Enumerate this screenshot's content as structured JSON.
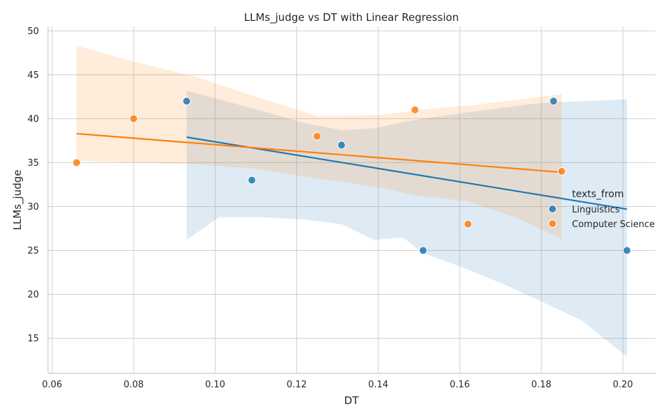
{
  "chart_data": {
    "type": "scatter",
    "title": "LLMs_judge vs DT with Linear Regression",
    "xlabel": "DT",
    "ylabel": "LLMs_judge",
    "xlim": [
      0.059,
      0.208
    ],
    "ylim": [
      11,
      50.5
    ],
    "x_ticks": [
      "0.06",
      "0.08",
      "0.10",
      "0.12",
      "0.14",
      "0.16",
      "0.18",
      "0.20"
    ],
    "y_ticks": [
      "15",
      "20",
      "25",
      "30",
      "35",
      "40",
      "45",
      "50"
    ],
    "grid": true,
    "legend": {
      "title": "texts_from",
      "placement": "right"
    },
    "series": [
      {
        "name": "Linguistics",
        "color": "#1f77b4",
        "points": [
          [
            0.093,
            42
          ],
          [
            0.109,
            33
          ],
          [
            0.131,
            37
          ],
          [
            0.151,
            25
          ],
          [
            0.183,
            42
          ],
          [
            0.201,
            25
          ]
        ],
        "regression": {
          "x": [
            0.093,
            0.201
          ],
          "y": [
            37.9,
            29.7
          ]
        },
        "confidence_band": {
          "x": [
            0.093,
            0.101,
            0.112,
            0.122,
            0.131,
            0.139,
            0.146,
            0.151,
            0.16,
            0.17,
            0.18,
            0.19,
            0.201
          ],
          "upper": [
            43.2,
            42.2,
            40.8,
            39.5,
            38.7,
            38.9,
            39.6,
            40.0,
            40.6,
            41.2,
            41.8,
            42.0,
            42.2
          ],
          "lower": [
            26.2,
            28.8,
            28.8,
            28.5,
            28.0,
            26.2,
            26.5,
            24.7,
            23.2,
            21.3,
            19.2,
            17.0,
            12.9
          ]
        }
      },
      {
        "name": "Computer Science",
        "color": "#ff7f0e",
        "points": [
          [
            0.066,
            35
          ],
          [
            0.08,
            40
          ],
          [
            0.125,
            38
          ],
          [
            0.149,
            41
          ],
          [
            0.162,
            28
          ],
          [
            0.185,
            34
          ]
        ],
        "regression": {
          "x": [
            0.066,
            0.185
          ],
          "y": [
            38.3,
            33.9
          ]
        },
        "confidence_band": {
          "x": [
            0.066,
            0.08,
            0.095,
            0.11,
            0.125,
            0.14,
            0.15,
            0.162,
            0.175,
            0.185
          ],
          "upper": [
            48.3,
            46.5,
            44.8,
            42.5,
            40.3,
            40.4,
            41.0,
            41.5,
            42.2,
            42.8
          ],
          "lower": [
            35.2,
            35.0,
            34.8,
            34.3,
            33.2,
            32.2,
            31.2,
            30.6,
            28.5,
            26.3
          ]
        }
      }
    ]
  }
}
